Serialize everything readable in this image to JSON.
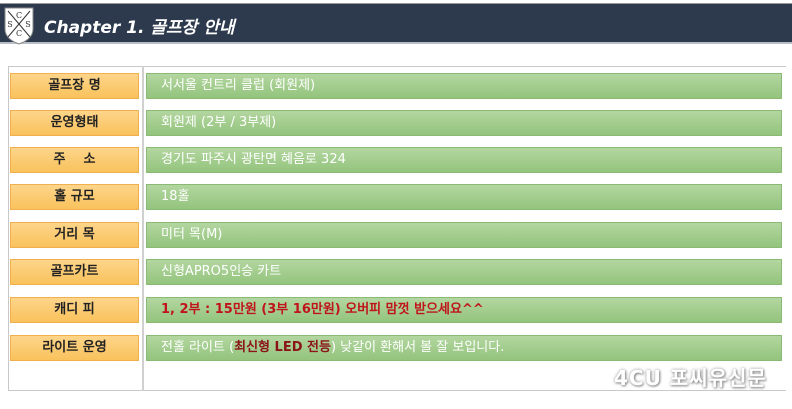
{
  "header": {
    "title": "Chapter 1.  골프장 안내",
    "logo_text": "SCSC"
  },
  "rows": [
    {
      "label": "골프장 명",
      "value": "서서울 컨트리 클럽 (회원제)"
    },
    {
      "label": "운영형태",
      "value": "회원제 (2부 / 3부제)"
    },
    {
      "label": "주    소",
      "value": "경기도 파주시 광탄면 혜음로 324"
    },
    {
      "label": "홀 규모",
      "value": "18홀"
    },
    {
      "label": "거리 목",
      "value": "미터 목(M)"
    },
    {
      "label": "골프카트",
      "value": "신형APRO5인승 카트"
    },
    {
      "label": "캐디 피",
      "value": "1, 2부 : 15만원 (3부 16만원) 오버피 맘껏 받으세요^^"
    },
    {
      "label": "라이트 운영",
      "value_parts": [
        "전홀 라이트 (",
        "최신형 LED 전등",
        ") 낮같이 환해서 볼 잘 보입니다."
      ]
    }
  ],
  "watermark": "4CU 포씨유신문",
  "colors": {
    "header": "#2d3a4d",
    "label": "#f9c25c",
    "value": "#93c47d",
    "highlight": "#c0141c"
  }
}
